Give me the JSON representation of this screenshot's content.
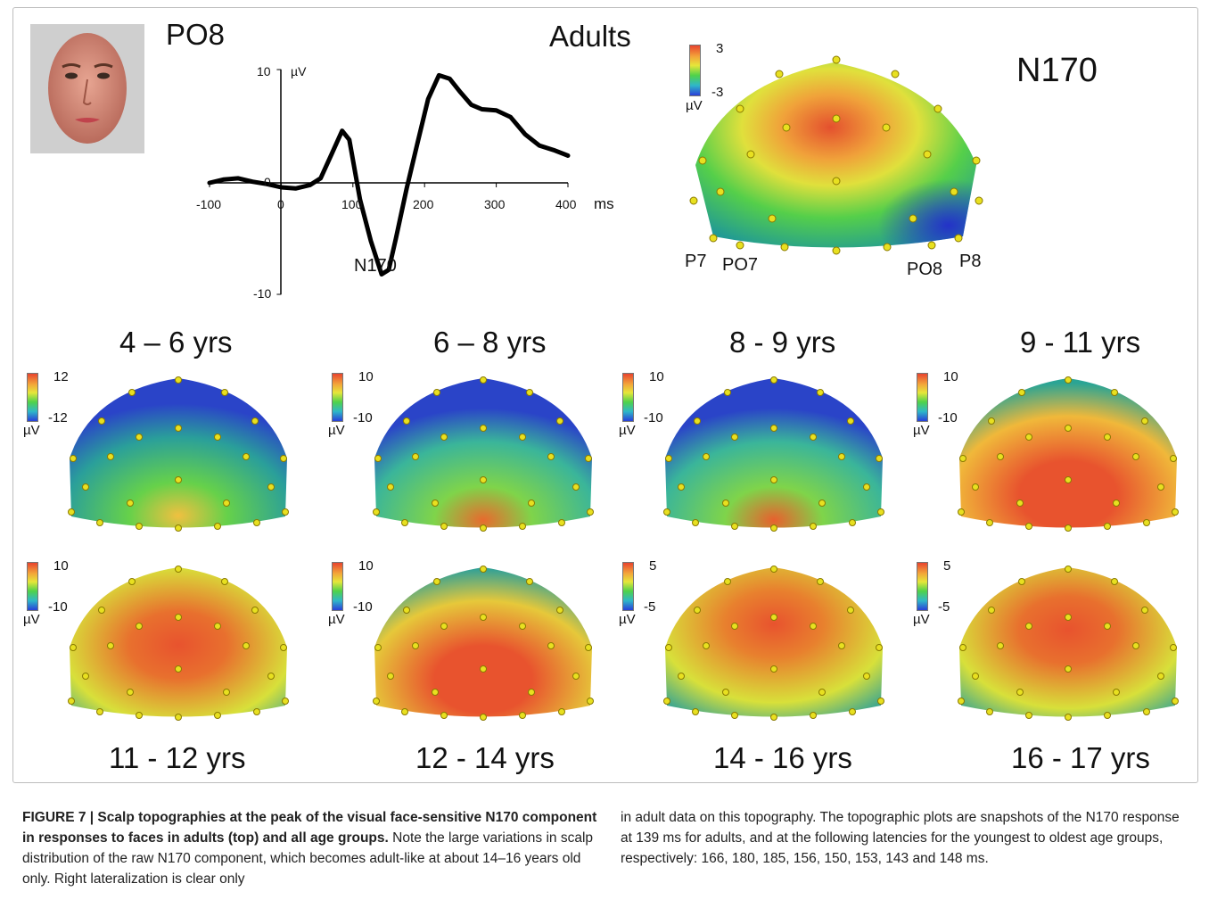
{
  "figure": {
    "header": {
      "electrode": "PO8",
      "group": "Adults",
      "component": "N170"
    },
    "waveform": {
      "y_ticks": [
        "10",
        "0",
        "-10"
      ],
      "y_unit": "µV",
      "x_ticks": [
        "-100",
        "0",
        "100",
        "200",
        "300",
        "400"
      ],
      "x_unit": "ms",
      "peak_label": "N170"
    },
    "adult_map": {
      "cb_max": "3",
      "cb_min": "-3",
      "cb_unit": "µV",
      "electrodes": [
        "P7",
        "PO7",
        "PO8",
        "P8"
      ]
    },
    "age_maps": [
      {
        "label": "4 – 6 yrs",
        "cb_max": "12",
        "cb_min": "-12",
        "cb_unit": "µV"
      },
      {
        "label": "6 – 8 yrs",
        "cb_max": "10",
        "cb_min": "-10",
        "cb_unit": "µV"
      },
      {
        "label": "8 - 9 yrs",
        "cb_max": "10",
        "cb_min": "-10",
        "cb_unit": "µV"
      },
      {
        "label": "9 - 11 yrs",
        "cb_max": "10",
        "cb_min": "-10",
        "cb_unit": "µV"
      },
      {
        "label": "11 - 12 yrs",
        "cb_max": "10",
        "cb_min": "-10",
        "cb_unit": "µV"
      },
      {
        "label": "12 - 14 yrs",
        "cb_max": "10",
        "cb_min": "-10",
        "cb_unit": "µV"
      },
      {
        "label": "14 - 16 yrs",
        "cb_max": "5",
        "cb_min": "-5",
        "cb_unit": "µV"
      },
      {
        "label": "16 - 17 yrs",
        "cb_max": "5",
        "cb_min": "-5",
        "cb_unit": "µV"
      }
    ]
  },
  "caption": {
    "label": "FIGURE 7 | Scalp topographies at the peak of the visual face-sensitive N170 component in responses to faces in adults (top) and all age groups.",
    "col1_text": " Note the large variations in scalp distribution of the raw N170 component, which becomes adult-like at about 14–16 years old only. Right lateralization is clear only",
    "col2_text": "in adult data on this topography. The topographic plots are snapshots of the N170 response at 139 ms for adults, and at the following latencies for the youngest to oldest age groups, respectively: 166, 180, 185, 156, 150, 153, 143 and 148 ms."
  },
  "chart_data": {
    "type": "line",
    "title": "",
    "xlabel": "ms",
    "ylabel": "µV",
    "xlim": [
      -100,
      400
    ],
    "ylim": [
      -10,
      10
    ],
    "series": [
      {
        "x": [
          -100,
          -80,
          -60,
          -40,
          -20,
          0,
          20,
          40,
          55,
          70,
          85,
          95,
          110,
          125,
          140,
          150,
          160,
          175,
          190,
          205,
          220,
          235,
          250,
          265,
          280,
          300,
          320,
          340,
          360,
          380,
          400
        ],
        "y": [
          0,
          0.3,
          0.4,
          0.1,
          -0.1,
          -0.4,
          -0.5,
          -0.2,
          0.4,
          2.5,
          4.6,
          3.8,
          -1.5,
          -5.2,
          -8.2,
          -7.8,
          -5.0,
          -0.5,
          3.5,
          7.4,
          9.5,
          9.2,
          8.0,
          6.9,
          6.5,
          6.4,
          5.8,
          4.3,
          3.3,
          2.9,
          2.4
        ]
      }
    ],
    "annotations": [
      "N170"
    ]
  }
}
